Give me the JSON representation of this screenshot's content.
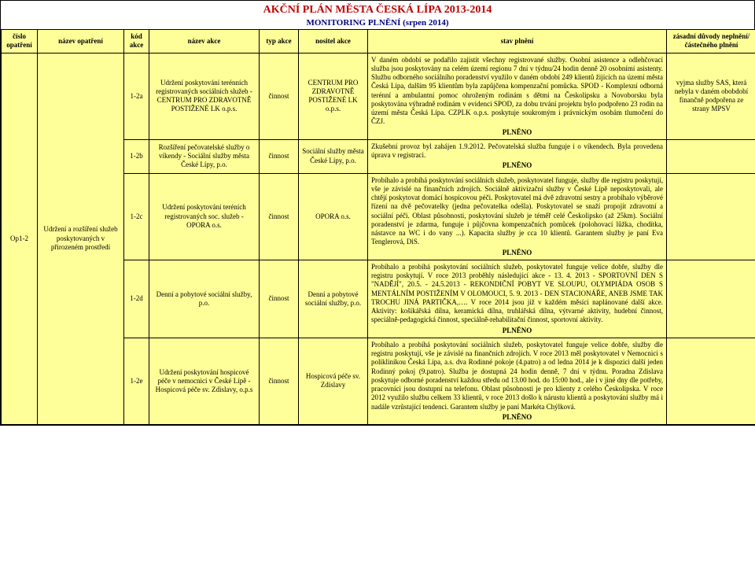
{
  "title": "AKČNÍ PLÁN MĚSTA ČESKÁ LÍPA 2013-2014",
  "subtitle": "MONITORING PLNĚNÍ (srpen 2014)",
  "columns": {
    "c1": "číslo opatření",
    "c2": "název opatření",
    "c3": "kód akce",
    "c4": "název akce",
    "c5": "typ akce",
    "c6": "nositel akce",
    "c7": "stav plnění",
    "c8": "zásadní důvody neplnění/částečného plnění"
  },
  "op": {
    "code": "Op1-2",
    "name": "Udržení a rozšíření služeb poskytovaných v přirozeném prostředí"
  },
  "rows": [
    {
      "kod": "1-2a",
      "akce": "Udržení poskytování terénních registrovaných sociálních služeb - CENTRUM PRO ZDRAVOTNĚ POSTIŽENÉ LK o.p.s.",
      "typ": "činnost",
      "nositel": "CENTRUM PRO ZDRAVOTNĚ POSTIŽENÉ LK o.p.s.",
      "stav": "V daném období se podařilo zajistit všechny registrované služby. Osobní asistence a odlehčovací služba jsou poskytovány na celém území regionu 7 dní v týdnu/24 hodin denně 20 osobními asistenty. Službu odborného sociálního poradenství využilo v daném období 249 klientů žijících na území města Česká Lípa, dalším 95 klientům byla zapůjčena kompenzační pomůcka. SPOD - Komplexní odborná terénní a ambulantní pomoc ohroženým rodinám s dětmi na Českolipsku a Novoborsku byla poskytována výhradně rodinám v evidenci SPOD, za dobu trvání projektu bylo podpořeno 23 rodin na území města Česká Lípa. CZPLK o.p.s. poskytuje soukromým i právnickým osobám tlumočení do ČZJ.",
      "plneno": "PLNĚNO",
      "duvod": "vyjma služby SAS, která nebyla v daném obobdobí finančně podpořena ze strany MPSV"
    },
    {
      "kod": "1-2b",
      "akce": "Rozšíření pečovatelské služby o víkendy - Sociální služby města České Lípy, p.o.",
      "typ": "činnost",
      "nositel": "Sociální služby města České Lípy, p.o.",
      "stav": "Zkušební provoz byl zahájen 1.9.2012. Pečovatelská služba funguje i o víkendech. Byla provedena úprava v registraci.",
      "plneno": "PLNĚNO",
      "duvod": ""
    },
    {
      "kod": "1-2c",
      "akce": "Udržení poskytování teréních registrovaných soc. služeb - OPORA o.s.",
      "typ": "činnost",
      "nositel": "OPORA o.s.",
      "stav": "Probíhalo a probíhá poskytování sociálních služeb, poskytovatel funguje, služby dle registru poskytují, vše je závislé na finančních zdrojích. Sociálně aktivizační služby v České Lípě neposkytovali, ale chtějí poskytovat domácí hospicovou péči. Poskytovatel má dvě zdravotní sestry a probíhalo výběrové řízení na dvě pečovatelky (jedna pečovatelka odešla). Poskytovatel se snaží propojit zdravotní a sociální péči. Oblast působnosti, poskytování služeb je téměř celé Českolipsko (až 25km). Sociální poradenství je zdarma, funguje i půjčovna kompenzačních pomůcek (polohovací lůžka, chodítka, nástavce na WC i do vany ...). Kapacita služby je cca 10 klientů. Garantem služby je paní Eva Tenglerová, DiS.",
      "plneno": "PLNĚNO",
      "duvod": ""
    },
    {
      "kod": "1-2d",
      "akce": "Denní a pobytové sociální služby, p.o.",
      "typ": "činnost",
      "nositel": "Denní a pobytové sociální služby, p.o.",
      "stav": "Probíhalo a probíhá poskytování sociálních služeb, poskytovatel funguje velice dobře, služby dle registru poskytují. V roce 2013 proběhly následující akce - 13. 4. 2013 - SPORTOVNÍ DEN S \"NADĚJÍ\", 20.5. - 24.5.2013 - REKONDIČNÍ POBYT VE SLOUPU, OLYMPIÁDA OSOB S MENTÁLNÍM POSTIŽENÍM V OLOMOUCI, 5. 9. 2013 - DEN STACIONÁŘE, ANEB JSME TAK TROCHU JINÁ PARTIČKA,…. V roce 2014 jsou již v každém měsíci naplánované další akce. Aktivity: košíkářská dílna, keramická dílna, truhlářská dílna, výtvarné aktivity, hudební činnost, speciálně-pedagogická činnost, speciálně-rehabilitační činnost, sportovní aktivity.",
      "plneno": "PLNĚNO",
      "duvod": ""
    },
    {
      "kod": "1-2e",
      "akce": "Udržení poskytování hospicové péče v nemocnici v České Lípě - Hospicová péče sv. Zdislavy, o.p.s",
      "typ": "činnost",
      "nositel": "Hospicová péče sv. Zdislavy",
      "stav": "Probíhalo a probíhá poskytování sociálních služeb, poskytovatel funguje velice dobře, služby dle registru poskytují, vše je závislé na finančních zdrojích. V roce 2013 měl poskytovatel v Nemocnici s poliklinikou Česká Lípa, a.s. dva Rodinné pokoje (4.patro) a od ledna 2014 je k dispozici další jeden Rodinný pokoj (9.patro). Služba je dostupná 24 hodin denně, 7 dní v týdnu. Poradna Zdislava poskytuje odborné poradenství každou středu od 13.00 hod. do 15:00 hod., ale i v jiné dny dle potřeby, pracovníci jsou dostupní na telefonu. Oblast působnosti je pro klienty z celého Českolipska. V roce 2012 využilo službu celkem 33 klientů, v roce 2013 došlo k nárustu klientů a poskytování služby má i nadále vzrůstající tendenci. Garantem služby je paní Markéta Chýlková.",
      "plneno": "PLNĚNO",
      "duvod": ""
    }
  ]
}
